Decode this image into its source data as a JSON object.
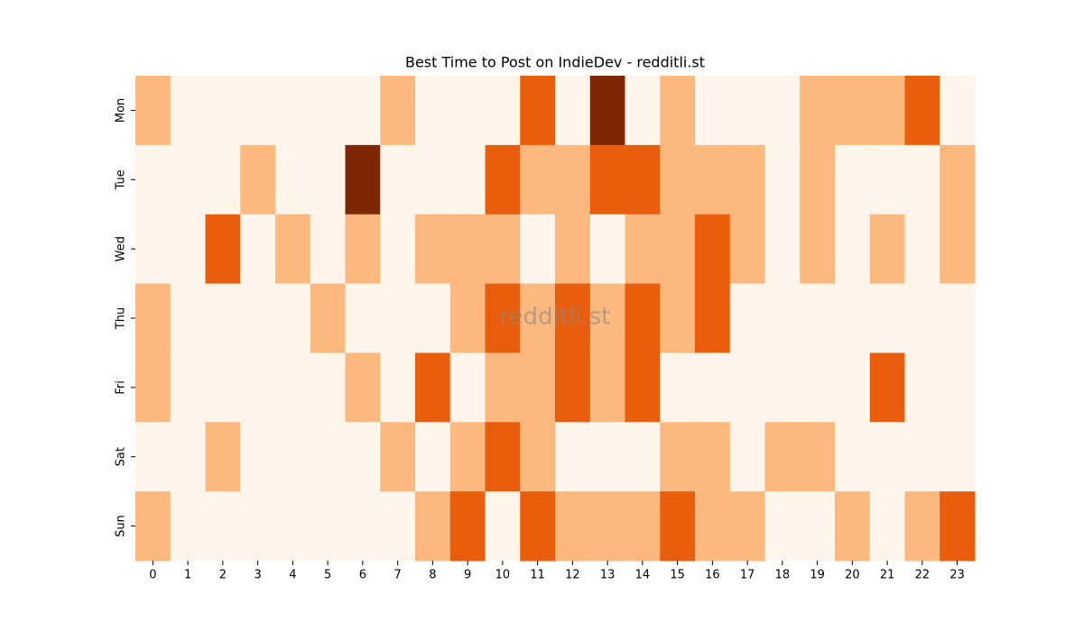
{
  "chart_data": {
    "type": "heatmap",
    "title": "Best Time to Post on IndieDev - redditli.st",
    "watermark": "redditli.st",
    "x": [
      0,
      1,
      2,
      3,
      4,
      5,
      6,
      7,
      8,
      9,
      10,
      11,
      12,
      13,
      14,
      15,
      16,
      17,
      18,
      19,
      20,
      21,
      22,
      23
    ],
    "y": [
      "Mon",
      "Tue",
      "Wed",
      "Thu",
      "Fri",
      "Sat",
      "Sun"
    ],
    "values": [
      [
        1,
        0,
        0,
        0,
        0,
        0,
        0,
        1,
        0,
        0,
        0,
        2,
        0,
        3,
        0,
        1,
        0,
        0,
        0,
        1,
        1,
        1,
        2,
        0
      ],
      [
        0,
        0,
        0,
        1,
        0,
        0,
        3,
        0,
        0,
        0,
        2,
        1,
        1,
        2,
        2,
        1,
        1,
        1,
        0,
        1,
        0,
        0,
        0,
        1
      ],
      [
        0,
        0,
        2,
        0,
        1,
        0,
        1,
        0,
        1,
        1,
        1,
        0,
        1,
        0,
        1,
        1,
        2,
        1,
        0,
        1,
        0,
        1,
        0,
        1
      ],
      [
        1,
        0,
        0,
        0,
        0,
        1,
        0,
        0,
        0,
        1,
        2,
        1,
        2,
        1,
        2,
        1,
        2,
        0,
        0,
        0,
        0,
        0,
        0,
        0
      ],
      [
        1,
        0,
        0,
        0,
        0,
        0,
        1,
        0,
        2,
        0,
        1,
        1,
        2,
        1,
        2,
        0,
        0,
        0,
        0,
        0,
        0,
        2,
        0,
        0
      ],
      [
        0,
        0,
        1,
        0,
        0,
        0,
        0,
        1,
        0,
        1,
        2,
        1,
        0,
        0,
        0,
        1,
        1,
        0,
        1,
        1,
        0,
        0,
        0,
        0
      ],
      [
        1,
        0,
        0,
        0,
        0,
        0,
        0,
        0,
        1,
        2,
        0,
        2,
        1,
        1,
        1,
        2,
        1,
        1,
        0,
        0,
        1,
        0,
        1,
        2
      ]
    ],
    "colors": [
      "#fff5eb",
      "#fdb97d",
      "#e95e0d",
      "#7f2704"
    ]
  }
}
